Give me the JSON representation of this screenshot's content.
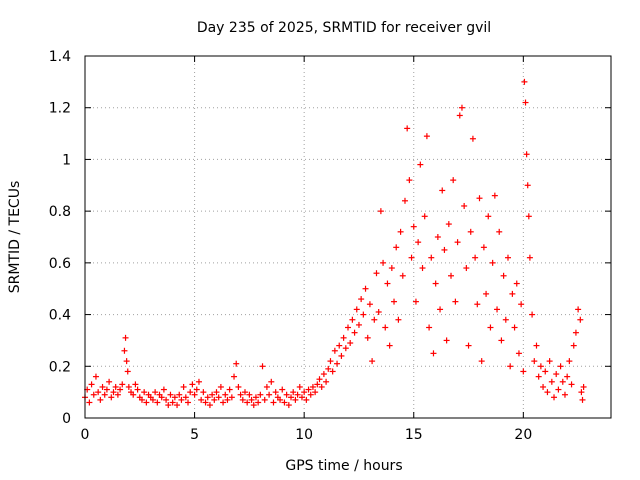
{
  "chart_data": {
    "type": "scatter",
    "title": "Day 235 of 2025, SRMTID for receiver gvil",
    "xlabel": "GPS time / hours",
    "ylabel": "SRMTID / TECUs",
    "xlim": [
      0,
      24
    ],
    "ylim": [
      0,
      1.4
    ],
    "x_ticks": [
      0,
      5,
      10,
      15,
      20
    ],
    "x_tick_labels": [
      "0",
      "5",
      "10",
      "15",
      "20"
    ],
    "y_ticks": [
      0,
      0.2,
      0.4,
      0.6,
      0.8,
      1.0,
      1.2,
      1.4
    ],
    "y_tick_labels": [
      "0",
      "0.2",
      "0.4",
      "0.6",
      "0.8",
      "1",
      "1.2",
      "1.4"
    ],
    "grid": true,
    "marker": "+",
    "color": "#ff0000",
    "series": [
      {
        "name": "gvil",
        "points": [
          [
            0.0,
            0.08
          ],
          [
            0.1,
            0.11
          ],
          [
            0.2,
            0.06
          ],
          [
            0.3,
            0.13
          ],
          [
            0.4,
            0.09
          ],
          [
            0.5,
            0.16
          ],
          [
            0.6,
            0.1
          ],
          [
            0.7,
            0.07
          ],
          [
            0.8,
            0.12
          ],
          [
            0.9,
            0.09
          ],
          [
            1.0,
            0.11
          ],
          [
            1.1,
            0.14
          ],
          [
            1.2,
            0.08
          ],
          [
            1.3,
            0.1
          ],
          [
            1.4,
            0.12
          ],
          [
            1.5,
            0.09
          ],
          [
            1.6,
            0.11
          ],
          [
            1.7,
            0.13
          ],
          [
            1.8,
            0.26
          ],
          [
            1.85,
            0.31
          ],
          [
            1.9,
            0.22
          ],
          [
            1.95,
            0.18
          ],
          [
            2.0,
            0.12
          ],
          [
            2.1,
            0.1
          ],
          [
            2.2,
            0.09
          ],
          [
            2.3,
            0.13
          ],
          [
            2.4,
            0.11
          ],
          [
            2.5,
            0.08
          ],
          [
            2.6,
            0.07
          ],
          [
            2.7,
            0.1
          ],
          [
            2.8,
            0.06
          ],
          [
            2.9,
            0.09
          ],
          [
            3.0,
            0.08
          ],
          [
            3.1,
            0.07
          ],
          [
            3.2,
            0.1
          ],
          [
            3.3,
            0.06
          ],
          [
            3.4,
            0.09
          ],
          [
            3.5,
            0.08
          ],
          [
            3.6,
            0.11
          ],
          [
            3.7,
            0.07
          ],
          [
            3.8,
            0.05
          ],
          [
            3.9,
            0.09
          ],
          [
            4.0,
            0.06
          ],
          [
            4.1,
            0.08
          ],
          [
            4.2,
            0.05
          ],
          [
            4.3,
            0.09
          ],
          [
            4.4,
            0.07
          ],
          [
            4.5,
            0.12
          ],
          [
            4.6,
            0.08
          ],
          [
            4.7,
            0.06
          ],
          [
            4.8,
            0.1
          ],
          [
            4.9,
            0.13
          ],
          [
            5.0,
            0.09
          ],
          [
            5.1,
            0.11
          ],
          [
            5.2,
            0.14
          ],
          [
            5.3,
            0.07
          ],
          [
            5.4,
            0.1
          ],
          [
            5.5,
            0.06
          ],
          [
            5.6,
            0.08
          ],
          [
            5.7,
            0.05
          ],
          [
            5.8,
            0.09
          ],
          [
            5.9,
            0.07
          ],
          [
            6.0,
            0.1
          ],
          [
            6.1,
            0.08
          ],
          [
            6.2,
            0.12
          ],
          [
            6.3,
            0.06
          ],
          [
            6.4,
            0.09
          ],
          [
            6.5,
            0.07
          ],
          [
            6.6,
            0.11
          ],
          [
            6.7,
            0.08
          ],
          [
            6.8,
            0.16
          ],
          [
            6.9,
            0.21
          ],
          [
            7.0,
            0.12
          ],
          [
            7.1,
            0.09
          ],
          [
            7.2,
            0.07
          ],
          [
            7.3,
            0.1
          ],
          [
            7.4,
            0.06
          ],
          [
            7.5,
            0.09
          ],
          [
            7.6,
            0.07
          ],
          [
            7.7,
            0.05
          ],
          [
            7.8,
            0.08
          ],
          [
            7.9,
            0.06
          ],
          [
            8.0,
            0.09
          ],
          [
            8.1,
            0.2
          ],
          [
            8.2,
            0.07
          ],
          [
            8.3,
            0.12
          ],
          [
            8.4,
            0.09
          ],
          [
            8.5,
            0.14
          ],
          [
            8.6,
            0.06
          ],
          [
            8.7,
            0.1
          ],
          [
            8.8,
            0.08
          ],
          [
            8.9,
            0.07
          ],
          [
            9.0,
            0.11
          ],
          [
            9.1,
            0.06
          ],
          [
            9.2,
            0.09
          ],
          [
            9.3,
            0.05
          ],
          [
            9.4,
            0.08
          ],
          [
            9.5,
            0.1
          ],
          [
            9.6,
            0.07
          ],
          [
            9.7,
            0.09
          ],
          [
            9.8,
            0.12
          ],
          [
            9.9,
            0.08
          ],
          [
            10.0,
            0.1
          ],
          [
            10.1,
            0.07
          ],
          [
            10.2,
            0.11
          ],
          [
            10.3,
            0.09
          ],
          [
            10.4,
            0.12
          ],
          [
            10.5,
            0.1
          ],
          [
            10.6,
            0.13
          ],
          [
            10.7,
            0.15
          ],
          [
            10.8,
            0.12
          ],
          [
            10.9,
            0.17
          ],
          [
            11.0,
            0.14
          ],
          [
            11.1,
            0.19
          ],
          [
            11.2,
            0.22
          ],
          [
            11.3,
            0.18
          ],
          [
            11.4,
            0.26
          ],
          [
            11.5,
            0.21
          ],
          [
            11.6,
            0.28
          ],
          [
            11.7,
            0.24
          ],
          [
            11.8,
            0.31
          ],
          [
            11.9,
            0.27
          ],
          [
            12.0,
            0.35
          ],
          [
            12.1,
            0.29
          ],
          [
            12.2,
            0.38
          ],
          [
            12.3,
            0.33
          ],
          [
            12.4,
            0.42
          ],
          [
            12.5,
            0.36
          ],
          [
            12.6,
            0.46
          ],
          [
            12.7,
            0.4
          ],
          [
            12.8,
            0.5
          ],
          [
            12.9,
            0.31
          ],
          [
            13.0,
            0.44
          ],
          [
            13.1,
            0.22
          ],
          [
            13.2,
            0.38
          ],
          [
            13.3,
            0.56
          ],
          [
            13.4,
            0.41
          ],
          [
            13.5,
            0.8
          ],
          [
            13.6,
            0.6
          ],
          [
            13.7,
            0.35
          ],
          [
            13.8,
            0.52
          ],
          [
            13.9,
            0.28
          ],
          [
            14.0,
            0.58
          ],
          [
            14.1,
            0.45
          ],
          [
            14.2,
            0.66
          ],
          [
            14.3,
            0.38
          ],
          [
            14.4,
            0.72
          ],
          [
            14.5,
            0.55
          ],
          [
            14.6,
            0.84
          ],
          [
            14.7,
            1.12
          ],
          [
            14.8,
            0.92
          ],
          [
            14.9,
            0.62
          ],
          [
            15.0,
            0.74
          ],
          [
            15.1,
            0.45
          ],
          [
            15.2,
            0.68
          ],
          [
            15.3,
            0.98
          ],
          [
            15.4,
            0.58
          ],
          [
            15.5,
            0.78
          ],
          [
            15.6,
            1.09
          ],
          [
            15.7,
            0.35
          ],
          [
            15.8,
            0.62
          ],
          [
            15.9,
            0.25
          ],
          [
            16.0,
            0.52
          ],
          [
            16.1,
            0.7
          ],
          [
            16.2,
            0.42
          ],
          [
            16.3,
            0.88
          ],
          [
            16.4,
            0.65
          ],
          [
            16.5,
            0.3
          ],
          [
            16.6,
            0.75
          ],
          [
            16.7,
            0.55
          ],
          [
            16.8,
            0.92
          ],
          [
            16.9,
            0.45
          ],
          [
            17.0,
            0.68
          ],
          [
            17.1,
            1.17
          ],
          [
            17.2,
            1.2
          ],
          [
            17.3,
            0.82
          ],
          [
            17.4,
            0.58
          ],
          [
            17.5,
            0.28
          ],
          [
            17.6,
            0.72
          ],
          [
            17.7,
            1.08
          ],
          [
            17.8,
            0.62
          ],
          [
            17.9,
            0.44
          ],
          [
            18.0,
            0.85
          ],
          [
            18.1,
            0.22
          ],
          [
            18.2,
            0.66
          ],
          [
            18.3,
            0.48
          ],
          [
            18.4,
            0.78
          ],
          [
            18.5,
            0.35
          ],
          [
            18.6,
            0.6
          ],
          [
            18.7,
            0.86
          ],
          [
            18.8,
            0.42
          ],
          [
            18.9,
            0.72
          ],
          [
            19.0,
            0.3
          ],
          [
            19.1,
            0.55
          ],
          [
            19.2,
            0.38
          ],
          [
            19.3,
            0.62
          ],
          [
            19.4,
            0.2
          ],
          [
            19.5,
            0.48
          ],
          [
            19.6,
            0.35
          ],
          [
            19.7,
            0.52
          ],
          [
            19.8,
            0.25
          ],
          [
            19.9,
            0.44
          ],
          [
            20.0,
            0.18
          ],
          [
            20.05,
            1.3
          ],
          [
            20.1,
            1.22
          ],
          [
            20.15,
            1.02
          ],
          [
            20.2,
            0.9
          ],
          [
            20.25,
            0.78
          ],
          [
            20.3,
            0.62
          ],
          [
            20.4,
            0.4
          ],
          [
            20.5,
            0.22
          ],
          [
            20.6,
            0.28
          ],
          [
            20.7,
            0.16
          ],
          [
            20.8,
            0.2
          ],
          [
            20.9,
            0.12
          ],
          [
            21.0,
            0.18
          ],
          [
            21.1,
            0.1
          ],
          [
            21.2,
            0.22
          ],
          [
            21.3,
            0.14
          ],
          [
            21.4,
            0.08
          ],
          [
            21.5,
            0.17
          ],
          [
            21.6,
            0.11
          ],
          [
            21.7,
            0.2
          ],
          [
            21.8,
            0.14
          ],
          [
            21.9,
            0.09
          ],
          [
            22.0,
            0.16
          ],
          [
            22.1,
            0.22
          ],
          [
            22.2,
            0.13
          ],
          [
            22.3,
            0.28
          ],
          [
            22.4,
            0.33
          ],
          [
            22.5,
            0.42
          ],
          [
            22.6,
            0.38
          ],
          [
            22.65,
            0.1
          ],
          [
            22.7,
            0.07
          ],
          [
            22.75,
            0.12
          ]
        ]
      }
    ]
  }
}
